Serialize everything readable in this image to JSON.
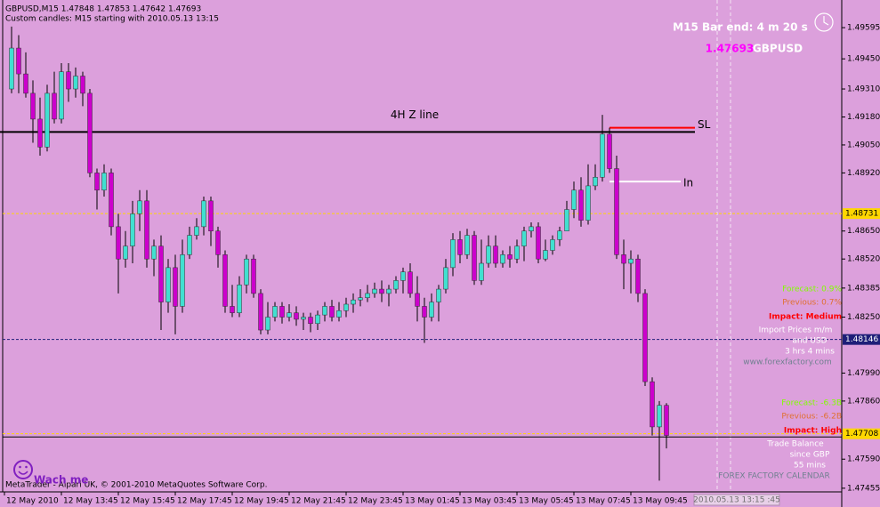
{
  "chart_data": {
    "type": "candlestick",
    "title": "GBPUSD,M15  1.47848 1.47853 1.47642 1.47693",
    "subtitle": "Custom candles: M15 starting with 2010.05.13 13:15",
    "colors": {
      "up": "#40e0d0",
      "down": "#cc00cc",
      "wick": "#000000"
    },
    "ylim": [
      1.47438,
      1.49711
    ],
    "yticks": [
      {
        "value": 1.49595,
        "label": "1.49595"
      },
      {
        "value": 1.4945,
        "label": "1.49450"
      },
      {
        "value": 1.4931,
        "label": "1.49310"
      },
      {
        "value": 1.4918,
        "label": "1.49180"
      },
      {
        "value": 1.4905,
        "label": "1.49050"
      },
      {
        "value": 1.4892,
        "label": "1.48920"
      },
      {
        "value": 1.4865,
        "label": "1.48650"
      },
      {
        "value": 1.4852,
        "label": "1.48520"
      },
      {
        "value": 1.48385,
        "label": "1.48385"
      },
      {
        "value": 1.4825,
        "label": "1.48250"
      },
      {
        "value": 1.4799,
        "label": "1.47990"
      },
      {
        "value": 1.4786,
        "label": "1.47860"
      },
      {
        "value": 1.4759,
        "label": "1.47590"
      },
      {
        "value": 1.47455,
        "label": "1.47455"
      }
    ],
    "xticks": [
      {
        "value": -1,
        "label": "12 May 2010"
      },
      {
        "value": 7,
        "label": "12 May 13:45"
      },
      {
        "value": 15,
        "label": "12 May 15:45"
      },
      {
        "value": 23,
        "label": "12 May 17:45"
      },
      {
        "value": 31,
        "label": "12 May 19:45"
      },
      {
        "value": 39,
        "label": "12 May 21:45"
      },
      {
        "value": 47,
        "label": "12 May 23:45"
      },
      {
        "value": 55,
        "label": "13 May 01:45"
      },
      {
        "value": 63,
        "label": "13 May 03:45"
      },
      {
        "value": 71,
        "label": "13 May 05:45"
      },
      {
        "value": 79,
        "label": "13 May 07:45"
      },
      {
        "value": 87,
        "label": "13 May 09:45"
      }
    ],
    "cursor_time": "2010.05.13 13:15 :45",
    "candles": [
      [
        1.4931,
        1.496,
        1.4929,
        1.495
      ],
      [
        1.495,
        1.4956,
        1.4929,
        1.4938
      ],
      [
        1.4938,
        1.4948,
        1.4927,
        1.4929
      ],
      [
        1.4929,
        1.4935,
        1.4906,
        1.4917
      ],
      [
        1.4917,
        1.4927,
        1.49,
        1.4904
      ],
      [
        1.4904,
        1.4933,
        1.4902,
        1.4929
      ],
      [
        1.4929,
        1.4939,
        1.4915,
        1.4917
      ],
      [
        1.4917,
        1.4943,
        1.4915,
        1.4939
      ],
      [
        1.4939,
        1.4943,
        1.4925,
        1.4931
      ],
      [
        1.4931,
        1.4941,
        1.4927,
        1.4937
      ],
      [
        1.4937,
        1.4939,
        1.4923,
        1.4929
      ],
      [
        1.4929,
        1.4931,
        1.489,
        1.4892
      ],
      [
        1.4892,
        1.4894,
        1.4875,
        1.4884
      ],
      [
        1.4884,
        1.4896,
        1.4881,
        1.4892
      ],
      [
        1.4892,
        1.4894,
        1.4863,
        1.4867
      ],
      [
        1.4867,
        1.4873,
        1.4836,
        1.4852
      ],
      [
        1.4852,
        1.4865,
        1.4848,
        1.4858
      ],
      [
        1.4858,
        1.4879,
        1.485,
        1.4873
      ],
      [
        1.4873,
        1.4884,
        1.4865,
        1.4879
      ],
      [
        1.4879,
        1.4884,
        1.4848,
        1.4852
      ],
      [
        1.4852,
        1.4861,
        1.4844,
        1.4858
      ],
      [
        1.4858,
        1.4863,
        1.4819,
        1.4832
      ],
      [
        1.4832,
        1.4852,
        1.4827,
        1.4848
      ],
      [
        1.4848,
        1.4854,
        1.4817,
        1.483
      ],
      [
        1.483,
        1.4861,
        1.4827,
        1.4854
      ],
      [
        1.4854,
        1.4867,
        1.4852,
        1.4863
      ],
      [
        1.4863,
        1.4871,
        1.4861,
        1.4867
      ],
      [
        1.4867,
        1.4881,
        1.4863,
        1.4879
      ],
      [
        1.4879,
        1.4881,
        1.4858,
        1.4865
      ],
      [
        1.4865,
        1.4867,
        1.4848,
        1.4854
      ],
      [
        1.4854,
        1.4856,
        1.4827,
        1.483
      ],
      [
        1.483,
        1.484,
        1.4825,
        1.4827
      ],
      [
        1.4827,
        1.4844,
        1.4825,
        1.484
      ],
      [
        1.484,
        1.4854,
        1.4836,
        1.4852
      ],
      [
        1.4852,
        1.4854,
        1.4834,
        1.4836
      ],
      [
        1.4836,
        1.4838,
        1.4817,
        1.4819
      ],
      [
        1.4819,
        1.4832,
        1.4817,
        1.4825
      ],
      [
        1.4825,
        1.4832,
        1.4823,
        1.483
      ],
      [
        1.483,
        1.4832,
        1.4822,
        1.4825
      ],
      [
        1.4825,
        1.4831,
        1.4823,
        1.4827
      ],
      [
        1.4827,
        1.483,
        1.4821,
        1.4824
      ],
      [
        1.4824,
        1.4827,
        1.4819,
        1.4825
      ],
      [
        1.4825,
        1.4827,
        1.4818,
        1.4822
      ],
      [
        1.4822,
        1.4828,
        1.4819,
        1.4826
      ],
      [
        1.4826,
        1.4832,
        1.4823,
        1.483
      ],
      [
        1.483,
        1.4833,
        1.4823,
        1.4825
      ],
      [
        1.4825,
        1.4832,
        1.4823,
        1.4828
      ],
      [
        1.4828,
        1.4834,
        1.4825,
        1.4831
      ],
      [
        1.4831,
        1.4836,
        1.4827,
        1.4833
      ],
      [
        1.4833,
        1.4838,
        1.483,
        1.4834
      ],
      [
        1.4834,
        1.484,
        1.4832,
        1.4836
      ],
      [
        1.4836,
        1.4841,
        1.4834,
        1.4838
      ],
      [
        1.4838,
        1.4842,
        1.4832,
        1.4836
      ],
      [
        1.4836,
        1.484,
        1.483,
        1.4838
      ],
      [
        1.4838,
        1.4844,
        1.4836,
        1.4842
      ],
      [
        1.4842,
        1.4848,
        1.4836,
        1.4846
      ],
      [
        1.4846,
        1.485,
        1.4834,
        1.4836
      ],
      [
        1.4836,
        1.4844,
        1.4823,
        1.483
      ],
      [
        1.483,
        1.4834,
        1.4813,
        1.4825
      ],
      [
        1.4825,
        1.4836,
        1.4823,
        1.4832
      ],
      [
        1.4832,
        1.484,
        1.4823,
        1.4838
      ],
      [
        1.4838,
        1.4852,
        1.4836,
        1.4848
      ],
      [
        1.4848,
        1.4864,
        1.4844,
        1.4861
      ],
      [
        1.4861,
        1.4865,
        1.485,
        1.4854
      ],
      [
        1.4854,
        1.4866,
        1.4852,
        1.4863
      ],
      [
        1.4863,
        1.4865,
        1.484,
        1.4842
      ],
      [
        1.4842,
        1.4861,
        1.484,
        1.485
      ],
      [
        1.485,
        1.4863,
        1.4848,
        1.4858
      ],
      [
        1.4858,
        1.4863,
        1.4848,
        1.485
      ],
      [
        1.485,
        1.4856,
        1.4848,
        1.4854
      ],
      [
        1.4854,
        1.4858,
        1.4848,
        1.4852
      ],
      [
        1.4852,
        1.4861,
        1.485,
        1.4858
      ],
      [
        1.4858,
        1.4867,
        1.4851,
        1.4865
      ],
      [
        1.4865,
        1.4869,
        1.4862,
        1.4867
      ],
      [
        1.4867,
        1.4869,
        1.485,
        1.4852
      ],
      [
        1.4852,
        1.4861,
        1.4851,
        1.4856
      ],
      [
        1.4856,
        1.4863,
        1.4854,
        1.4861
      ],
      [
        1.4861,
        1.4867,
        1.4858,
        1.4865
      ],
      [
        1.4865,
        1.4879,
        1.4865,
        1.4875
      ],
      [
        1.4875,
        1.4888,
        1.4871,
        1.4884
      ],
      [
        1.4884,
        1.489,
        1.4867,
        1.487
      ],
      [
        1.487,
        1.4896,
        1.4868,
        1.4886
      ],
      [
        1.4886,
        1.4896,
        1.4884,
        1.489
      ],
      [
        1.489,
        1.4919,
        1.4888,
        1.491
      ],
      [
        1.491,
        1.4913,
        1.4892,
        1.4894
      ],
      [
        1.4894,
        1.49,
        1.4852,
        1.4854
      ],
      [
        1.4854,
        1.4861,
        1.4838,
        1.485
      ],
      [
        1.485,
        1.4856,
        1.4836,
        1.4852
      ],
      [
        1.4852,
        1.4854,
        1.4832,
        1.4836
      ],
      [
        1.4836,
        1.4838,
        1.4793,
        1.4795
      ],
      [
        1.4795,
        1.4797,
        1.477,
        1.4774
      ],
      [
        1.4774,
        1.4786,
        1.4749,
        1.4784
      ],
      [
        1.4784,
        1.4785,
        1.4764,
        1.477
      ]
    ],
    "lines": [
      {
        "name": "4H Z line",
        "value": 1.4911,
        "color": "#000000",
        "from": -1,
        "to": 96
      },
      {
        "name": "SL",
        "value": 1.4913,
        "color": "#ff0000",
        "from": 85,
        "to": 96
      },
      {
        "name": "In",
        "value": 1.4888,
        "color": "#ffffff",
        "from": 85,
        "to": 94
      }
    ],
    "price_markers": [
      {
        "value": 1.48731,
        "color": "#ffd700",
        "text_color": "#000000"
      },
      {
        "value": 1.48146,
        "color": "#1e1e78",
        "text_color": "#ffffff"
      },
      {
        "value": 1.47708,
        "color": "#ffd700",
        "text_color": "#000000"
      }
    ],
    "bid": 1.47693,
    "symbol": "GBPUSD",
    "bar_timer": "M15 Bar end: 4 m 20 s",
    "news": [
      {
        "forecast": "Forecast: 0.9%",
        "previous": "Previous: 0.7%",
        "impact": "Impact: Medium",
        "details": [
          "Import Prices m/m",
          "and USD",
          "3 hrs 4 mins"
        ],
        "source": "www.forexfactory.com"
      },
      {
        "forecast": "Forecast: -6.3B",
        "previous": "Previous: -6.2B",
        "impact": "Impact: High",
        "details": [
          "Trade Balance",
          "since GBP",
          "55 mins"
        ],
        "source": "FOREX FACTORY CALENDAR"
      }
    ],
    "footer": "MetaTrader - Alpari UK, © 2001-2010 MetaQuotes Software Corp.",
    "badge": "Wach me"
  }
}
